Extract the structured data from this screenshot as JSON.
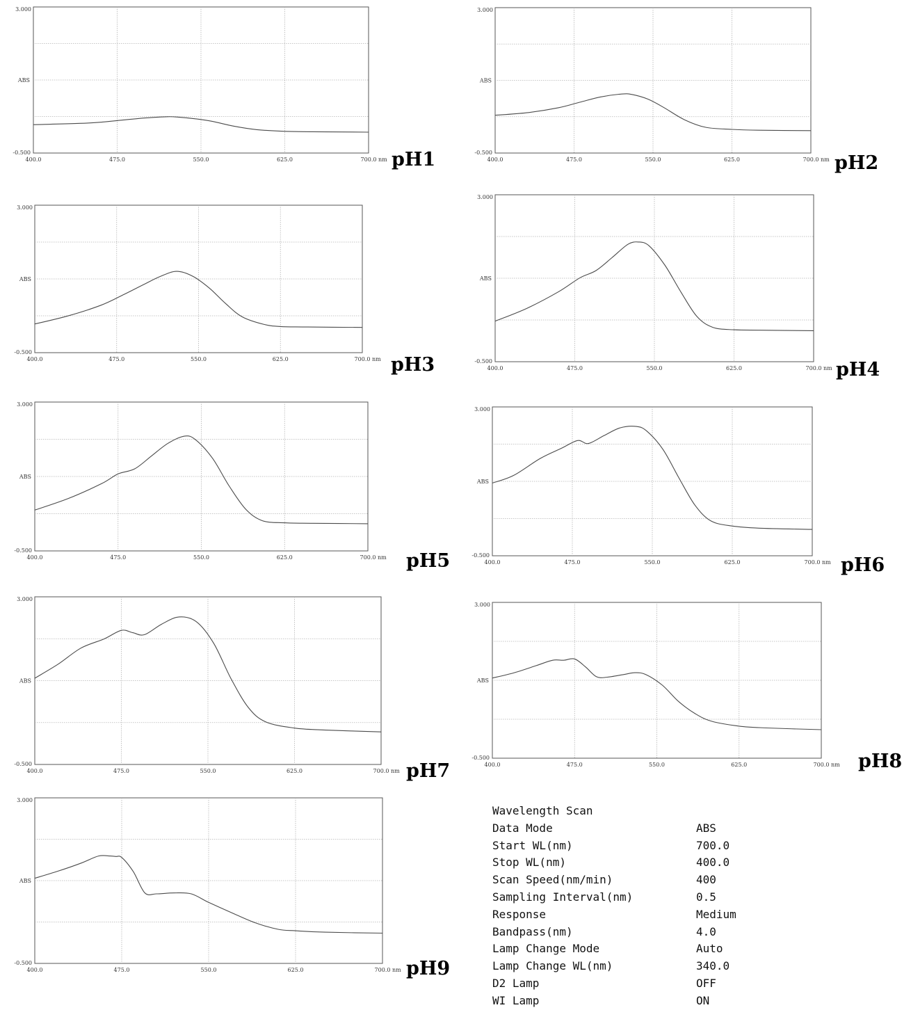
{
  "axis_text": {
    "y_max": "3.000",
    "y_mid": "ABS",
    "y_min": "-0.500",
    "x_ticks": [
      "400.0",
      "475.0",
      "550.0",
      "625.0",
      "700.0"
    ],
    "x_unit": "nm"
  },
  "scan_settings": {
    "title": "Wavelength Scan",
    "rows": [
      {
        "key": "Data Mode",
        "value": "ABS"
      },
      {
        "key": "Start WL(nm)",
        "value": "700.0"
      },
      {
        "key": "Stop WL(nm)",
        "value": "400.0"
      },
      {
        "key": "Scan Speed(nm/min)",
        "value": "400"
      },
      {
        "key": "Sampling Interval(nm)",
        "value": "0.5"
      },
      {
        "key": "Response",
        "value": "Medium"
      },
      {
        "key": "Bandpass(nm)",
        "value": "4.0"
      },
      {
        "key": "Lamp Change Mode",
        "value": "Auto"
      },
      {
        "key": "Lamp Change WL(nm)",
        "value": "340.0"
      },
      {
        "key": "D2 Lamp",
        "value": "OFF"
      },
      {
        "key": "WI Lamp",
        "value": "ON"
      }
    ]
  },
  "chart_data": [
    {
      "type": "line",
      "label": "pH1",
      "xlim": [
        400,
        700
      ],
      "ylim": [
        -0.5,
        3.0
      ],
      "y_axis_label": "ABS",
      "x_unit": "nm",
      "grid": true,
      "series": [
        {
          "x": [
            400,
            450,
            480,
            500,
            520,
            530,
            545,
            560,
            580,
            600,
            625,
            650,
            700
          ],
          "y": [
            0.18,
            0.22,
            0.29,
            0.34,
            0.37,
            0.36,
            0.32,
            0.26,
            0.14,
            0.06,
            0.02,
            0.01,
            0.0
          ]
        }
      ]
    },
    {
      "type": "line",
      "label": "pH2",
      "xlim": [
        400,
        700
      ],
      "ylim": [
        -0.5,
        3.0
      ],
      "y_axis_label": "ABS",
      "x_unit": "nm",
      "grid": true,
      "series": [
        {
          "x": [
            400,
            430,
            460,
            480,
            500,
            520,
            530,
            545,
            560,
            580,
            600,
            625,
            650,
            700
          ],
          "y": [
            0.41,
            0.47,
            0.59,
            0.72,
            0.85,
            0.92,
            0.91,
            0.8,
            0.6,
            0.3,
            0.12,
            0.07,
            0.05,
            0.04
          ]
        }
      ]
    },
    {
      "type": "line",
      "label": "pH3",
      "xlim": [
        400,
        700
      ],
      "ylim": [
        -0.5,
        3.0
      ],
      "y_axis_label": "ABS",
      "x_unit": "nm",
      "grid": true,
      "series": [
        {
          "x": [
            400,
            430,
            460,
            480,
            500,
            515,
            530,
            545,
            560,
            575,
            590,
            610,
            625,
            650,
            700
          ],
          "y": [
            0.18,
            0.37,
            0.62,
            0.86,
            1.12,
            1.31,
            1.43,
            1.31,
            1.03,
            0.66,
            0.35,
            0.17,
            0.12,
            0.11,
            0.1
          ]
        }
      ]
    },
    {
      "type": "line",
      "label": "pH4",
      "xlim": [
        400,
        700
      ],
      "ylim": [
        -0.5,
        3.0
      ],
      "y_axis_label": "ABS",
      "x_unit": "nm",
      "grid": true,
      "series": [
        {
          "x": [
            400,
            430,
            460,
            480,
            495,
            510,
            525,
            535,
            545,
            560,
            575,
            590,
            605,
            625,
            650,
            700
          ],
          "y": [
            0.35,
            0.62,
            0.97,
            1.26,
            1.41,
            1.68,
            1.96,
            2.01,
            1.93,
            1.52,
            0.96,
            0.45,
            0.22,
            0.17,
            0.16,
            0.15
          ]
        }
      ]
    },
    {
      "type": "line",
      "label": "pH5",
      "xlim": [
        400,
        700
      ],
      "ylim": [
        -0.5,
        3.0
      ],
      "y_axis_label": "ABS",
      "x_unit": "nm",
      "grid": true,
      "series": [
        {
          "x": [
            400,
            430,
            460,
            475,
            490,
            505,
            520,
            535,
            545,
            560,
            575,
            590,
            605,
            625,
            650,
            700
          ],
          "y": [
            0.46,
            0.73,
            1.08,
            1.31,
            1.43,
            1.73,
            2.03,
            2.2,
            2.11,
            1.68,
            1.03,
            0.48,
            0.21,
            0.16,
            0.15,
            0.14
          ]
        }
      ]
    },
    {
      "type": "line",
      "label": "pH6",
      "xlim": [
        400,
        700
      ],
      "ylim": [
        -0.5,
        3.0
      ],
      "y_axis_label": "ABS",
      "x_unit": "nm",
      "grid": true,
      "series": [
        {
          "x": [
            400,
            420,
            445,
            465,
            480,
            490,
            505,
            520,
            535,
            545,
            560,
            575,
            590,
            605,
            625,
            650,
            700
          ],
          "y": [
            1.21,
            1.39,
            1.79,
            2.03,
            2.21,
            2.14,
            2.33,
            2.51,
            2.54,
            2.43,
            2.0,
            1.33,
            0.69,
            0.32,
            0.2,
            0.15,
            0.12
          ]
        }
      ]
    },
    {
      "type": "line",
      "label": "pH7",
      "xlim": [
        400,
        700
      ],
      "ylim": [
        -0.5,
        3.0
      ],
      "y_axis_label": "ABS",
      "x_unit": "nm",
      "grid": true,
      "series": [
        {
          "x": [
            400,
            420,
            440,
            460,
            475,
            485,
            495,
            510,
            525,
            540,
            555,
            570,
            585,
            600,
            625,
            650,
            700
          ],
          "y": [
            1.3,
            1.59,
            1.93,
            2.12,
            2.3,
            2.25,
            2.21,
            2.43,
            2.58,
            2.48,
            2.03,
            1.29,
            0.69,
            0.39,
            0.26,
            0.22,
            0.18
          ]
        }
      ]
    },
    {
      "type": "line",
      "label": "pH8",
      "xlim": [
        400,
        700
      ],
      "ylim": [
        -0.5,
        3.0
      ],
      "y_axis_label": "ABS",
      "x_unit": "nm",
      "grid": true,
      "series": [
        {
          "x": [
            400,
            420,
            440,
            455,
            465,
            475,
            485,
            495,
            505,
            520,
            530,
            540,
            555,
            570,
            585,
            600,
            625,
            650,
            700
          ],
          "y": [
            1.3,
            1.42,
            1.58,
            1.7,
            1.7,
            1.73,
            1.55,
            1.33,
            1.32,
            1.38,
            1.42,
            1.38,
            1.14,
            0.77,
            0.5,
            0.33,
            0.22,
            0.18,
            0.14
          ]
        }
      ]
    },
    {
      "type": "line",
      "label": "pH9",
      "xlim": [
        400,
        700
      ],
      "ylim": [
        -0.5,
        3.0
      ],
      "y_axis_label": "ABS",
      "x_unit": "nm",
      "grid": true,
      "series": [
        {
          "x": [
            400,
            420,
            440,
            455,
            465,
            470,
            475,
            485,
            495,
            505,
            520,
            535,
            550,
            570,
            590,
            610,
            625,
            650,
            700
          ],
          "y": [
            1.3,
            1.45,
            1.62,
            1.77,
            1.77,
            1.76,
            1.74,
            1.44,
            0.99,
            0.97,
            0.99,
            0.97,
            0.79,
            0.57,
            0.36,
            0.22,
            0.19,
            0.16,
            0.14
          ]
        }
      ]
    }
  ]
}
